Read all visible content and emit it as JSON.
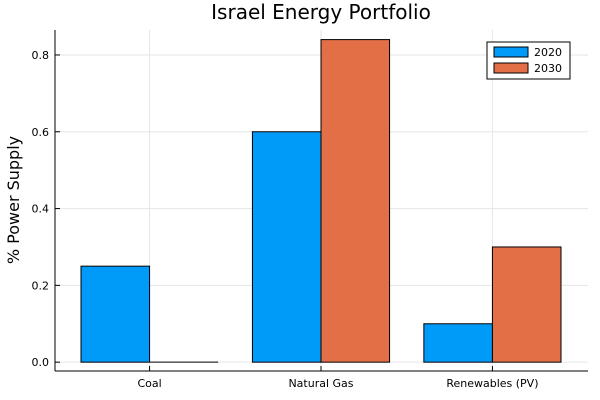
{
  "chart_data": {
    "type": "bar",
    "title": "Israel Energy Portfolio",
    "xlabel": "",
    "ylabel": "% Power Supply",
    "categories": [
      "Coal",
      "Natural Gas",
      "Renewables (PV)"
    ],
    "series": [
      {
        "name": "2020",
        "values": [
          0.25,
          0.6,
          0.1
        ],
        "color": "#009af9"
      },
      {
        "name": "2030",
        "values": [
          0.0,
          0.84,
          0.3
        ],
        "color": "#e26f46"
      }
    ],
    "ylim": [
      -0.023,
      0.865
    ],
    "yticks": [
      0.0,
      0.2,
      0.4,
      0.6,
      0.8
    ],
    "ytick_labels": [
      "0.0",
      "0.2",
      "0.4",
      "0.6",
      "0.8"
    ],
    "grid": true,
    "legend_position": "top-right"
  }
}
